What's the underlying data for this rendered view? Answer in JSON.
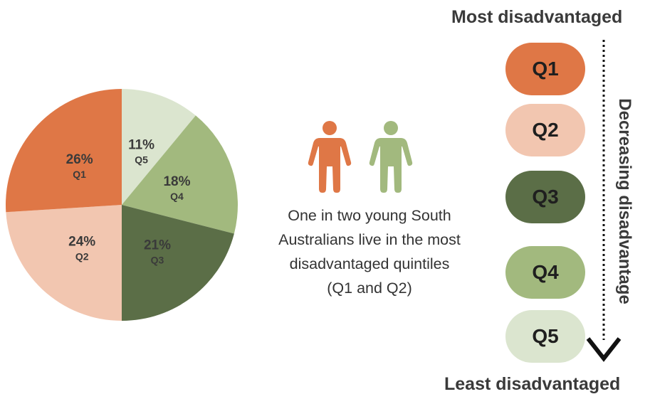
{
  "chart_data": {
    "type": "pie",
    "start_angle_deg": 0,
    "direction": "clockwise",
    "slices": [
      {
        "key": "q5",
        "label": "Q5",
        "value": 11,
        "pct_label": "11%",
        "color": "#dbe5cf"
      },
      {
        "key": "q4",
        "label": "Q4",
        "value": 18,
        "pct_label": "18%",
        "color": "#a2b97e"
      },
      {
        "key": "q3",
        "label": "Q3",
        "value": 21,
        "pct_label": "21%",
        "color": "#5b6e47"
      },
      {
        "key": "q2",
        "label": "Q2",
        "value": 24,
        "pct_label": "24%",
        "color": "#f2c6b0"
      },
      {
        "key": "q1",
        "label": "Q1",
        "value": 26,
        "pct_label": "26%",
        "color": "#df7746"
      }
    ]
  },
  "people": {
    "left": {
      "icon": "person-icon",
      "color": "#df7746"
    },
    "right": {
      "icon": "person-icon",
      "color": "#a2b97e"
    }
  },
  "caption": {
    "line1": "One in two young South",
    "line2": "Australians live in the most",
    "line3": "disadvantaged quintiles",
    "line4": "(Q1 and Q2)"
  },
  "scale": {
    "top_label": "Most disadvantaged",
    "bottom_label": "Least disadvantaged",
    "arrow_label": "Decreasing disadvantage",
    "quintiles": [
      {
        "label": "Q1",
        "color": "#df7746"
      },
      {
        "label": "Q2",
        "color": "#f2c6b0"
      },
      {
        "label": "Q3",
        "color": "#5b6e47"
      },
      {
        "label": "Q4",
        "color": "#a2b97e"
      },
      {
        "label": "Q5",
        "color": "#dbe5cf"
      }
    ]
  }
}
